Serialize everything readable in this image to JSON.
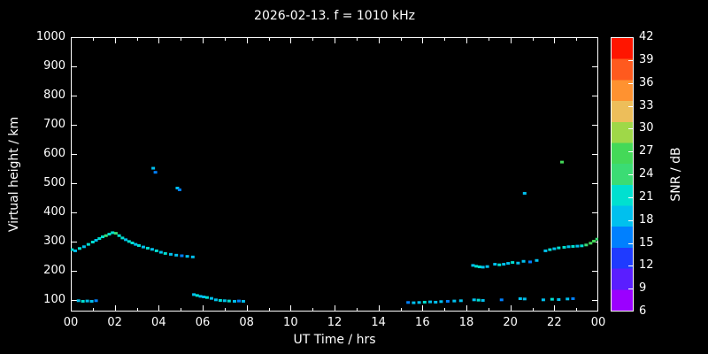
{
  "chart_data": {
    "type": "scatter",
    "title": "2026-02-13. f = 1010 kHz",
    "xlabel": "UT Time / hrs",
    "ylabel": "Virtual height / km",
    "xlim": [
      0,
      24
    ],
    "ylim": [
      60,
      1000
    ],
    "x_tick_values": [
      0,
      2,
      4,
      6,
      8,
      10,
      12,
      14,
      16,
      18,
      20,
      22,
      24
    ],
    "x_tick_labels": [
      "00",
      "02",
      "04",
      "06",
      "08",
      "10",
      "12",
      "14",
      "16",
      "18",
      "20",
      "22",
      "00"
    ],
    "x_minor_tick_values": [
      1,
      3,
      5,
      7,
      9,
      11,
      13,
      15,
      17,
      19,
      21,
      23
    ],
    "y_tick_values": [
      100,
      200,
      300,
      400,
      500,
      600,
      700,
      800,
      900,
      1000
    ],
    "grid": false,
    "background": "#000000",
    "frame_color": "#ffffff",
    "text_color": "#ffffff",
    "colorbar": {
      "label": "SNR / dB",
      "min": 6,
      "max": 42,
      "step": 3,
      "ticks": [
        6,
        9,
        12,
        15,
        18,
        21,
        24,
        27,
        30,
        33,
        36,
        39,
        42
      ],
      "band_colors_bottom_to_top": [
        "#9b00ff",
        "#5a1eff",
        "#1f3bff",
        "#0080ff",
        "#00c0ee",
        "#00e0d0",
        "#3bdc74",
        "#44d958",
        "#9fd848",
        "#edbe5a",
        "#ff9230",
        "#ff5a1e",
        "#ff1500"
      ]
    },
    "points": [
      [
        0.05,
        272,
        21
      ],
      [
        0.2,
        268,
        18
      ],
      [
        0.4,
        276,
        21
      ],
      [
        0.6,
        282,
        18
      ],
      [
        0.8,
        290,
        21
      ],
      [
        1.0,
        298,
        21
      ],
      [
        1.15,
        304,
        18
      ],
      [
        1.3,
        310,
        21
      ],
      [
        1.45,
        316,
        21
      ],
      [
        1.6,
        320,
        24
      ],
      [
        1.75,
        325,
        21
      ],
      [
        1.9,
        330,
        21
      ],
      [
        2.05,
        328,
        24
      ],
      [
        2.2,
        320,
        21
      ],
      [
        2.35,
        312,
        21
      ],
      [
        2.5,
        306,
        18
      ],
      [
        2.65,
        300,
        21
      ],
      [
        2.8,
        295,
        21
      ],
      [
        2.95,
        290,
        18
      ],
      [
        3.1,
        286,
        21
      ],
      [
        3.3,
        281,
        18
      ],
      [
        3.5,
        277,
        21
      ],
      [
        3.7,
        273,
        18
      ],
      [
        3.9,
        268,
        21
      ],
      [
        4.1,
        263,
        18
      ],
      [
        4.3,
        259,
        21
      ],
      [
        4.55,
        256,
        18
      ],
      [
        4.8,
        253,
        18
      ],
      [
        5.05,
        251,
        15
      ],
      [
        5.3,
        249,
        18
      ],
      [
        5.55,
        247,
        18
      ],
      [
        3.75,
        551,
        18
      ],
      [
        3.85,
        537,
        15
      ],
      [
        4.85,
        483,
        18
      ],
      [
        4.95,
        477,
        15
      ],
      [
        0.35,
        97,
        18
      ],
      [
        0.55,
        95,
        21
      ],
      [
        0.75,
        96,
        18
      ],
      [
        0.95,
        95,
        18
      ],
      [
        1.15,
        97,
        15
      ],
      [
        5.6,
        118,
        18
      ],
      [
        5.75,
        115,
        21
      ],
      [
        5.9,
        112,
        18
      ],
      [
        6.05,
        110,
        18
      ],
      [
        6.2,
        108,
        21
      ],
      [
        6.4,
        105,
        18
      ],
      [
        6.6,
        100,
        18
      ],
      [
        6.8,
        98,
        21
      ],
      [
        7.0,
        97,
        18
      ],
      [
        7.2,
        96,
        21
      ],
      [
        7.45,
        95,
        18
      ],
      [
        7.65,
        96,
        15
      ],
      [
        7.85,
        95,
        18
      ],
      [
        15.35,
        91,
        15
      ],
      [
        15.6,
        90,
        18
      ],
      [
        15.85,
        91,
        18
      ],
      [
        16.1,
        92,
        21
      ],
      [
        16.35,
        93,
        18
      ],
      [
        16.6,
        92,
        18
      ],
      [
        16.85,
        94,
        18
      ],
      [
        17.15,
        95,
        15
      ],
      [
        17.45,
        96,
        18
      ],
      [
        17.75,
        97,
        18
      ],
      [
        18.3,
        218,
        18
      ],
      [
        18.45,
        215,
        21
      ],
      [
        18.6,
        213,
        21
      ],
      [
        18.75,
        212,
        18
      ],
      [
        18.95,
        214,
        18
      ],
      [
        19.3,
        222,
        18
      ],
      [
        19.5,
        220,
        21
      ],
      [
        19.7,
        222,
        18
      ],
      [
        19.9,
        225,
        18
      ],
      [
        20.1,
        228,
        21
      ],
      [
        20.35,
        226,
        18
      ],
      [
        20.6,
        232,
        18
      ],
      [
        20.9,
        230,
        15
      ],
      [
        21.2,
        235,
        18
      ],
      [
        21.6,
        268,
        18
      ],
      [
        21.8,
        272,
        21
      ],
      [
        22.0,
        275,
        18
      ],
      [
        22.2,
        278,
        21
      ],
      [
        22.45,
        280,
        21
      ],
      [
        22.65,
        282,
        18
      ],
      [
        22.85,
        283,
        21
      ],
      [
        23.05,
        284,
        18
      ],
      [
        23.25,
        285,
        21
      ],
      [
        23.45,
        288,
        24
      ],
      [
        23.65,
        294,
        27
      ],
      [
        23.8,
        301,
        27
      ],
      [
        23.95,
        308,
        24
      ],
      [
        20.65,
        465,
        18
      ],
      [
        22.35,
        572,
        27
      ],
      [
        18.35,
        100,
        18
      ],
      [
        18.55,
        99,
        21
      ],
      [
        18.75,
        98,
        18
      ],
      [
        19.6,
        100,
        15
      ],
      [
        20.45,
        104,
        18
      ],
      [
        20.65,
        103,
        18
      ],
      [
        21.5,
        100,
        18
      ],
      [
        21.9,
        102,
        21
      ],
      [
        22.2,
        101,
        18
      ],
      [
        22.6,
        103,
        18
      ],
      [
        22.85,
        104,
        15
      ]
    ]
  }
}
